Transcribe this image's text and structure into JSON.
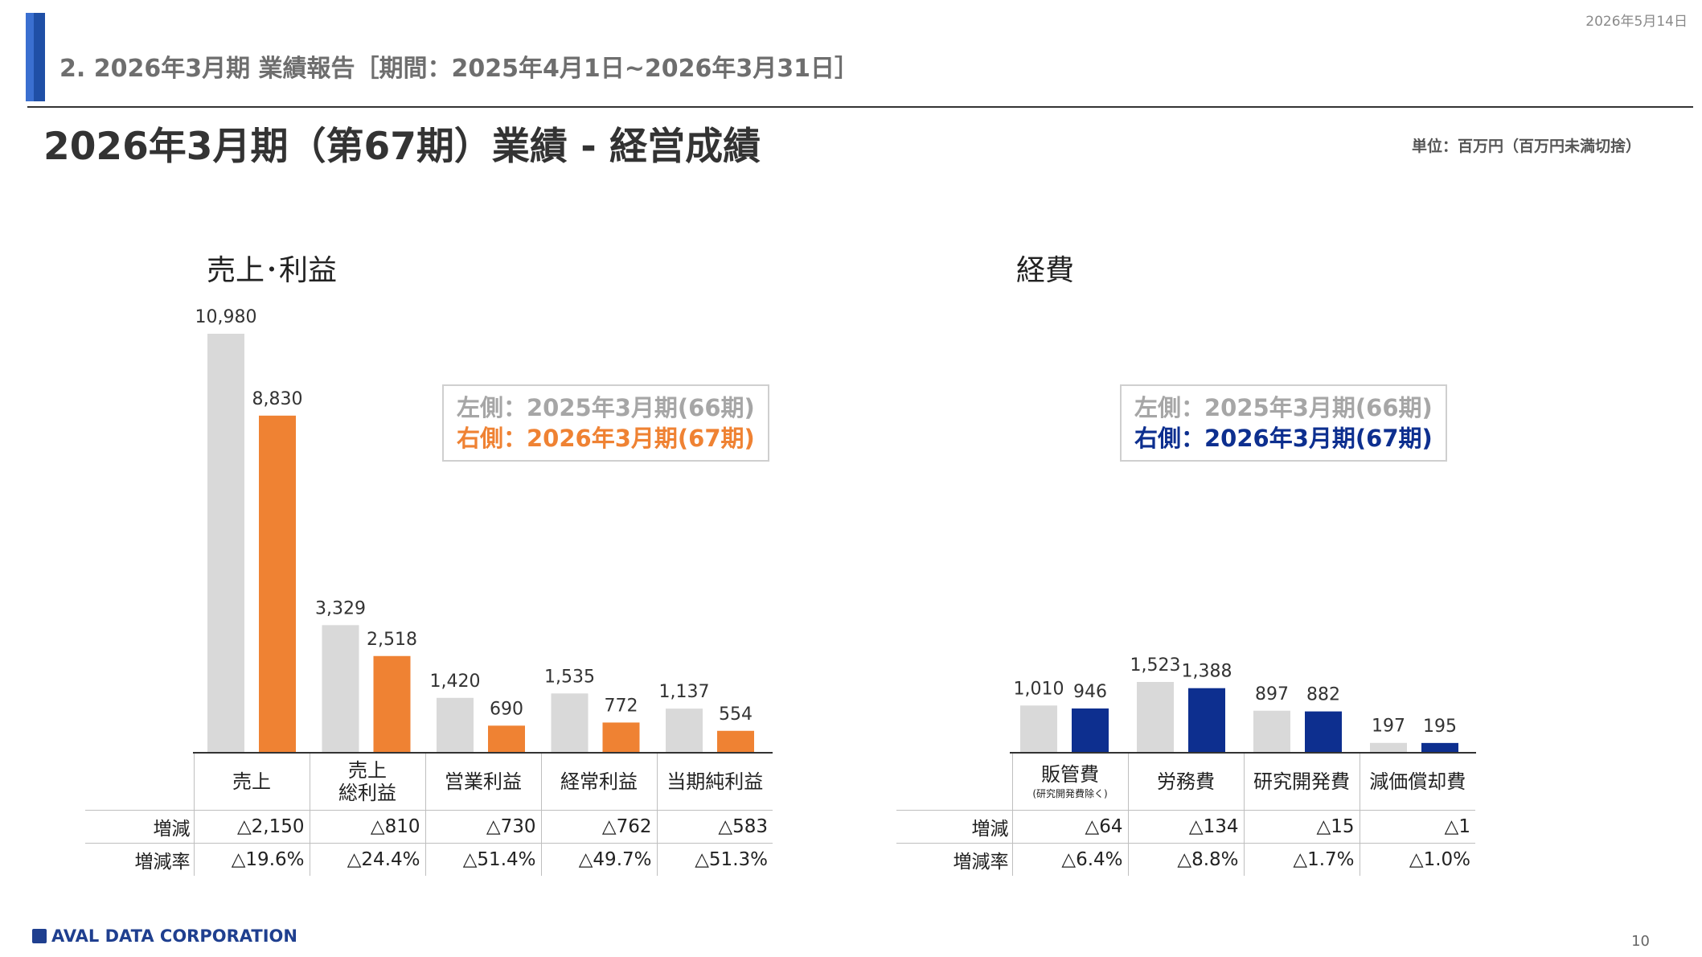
{
  "header": {
    "date": "2026年5月14日",
    "section_title": "2. 2026年3月期 業績報告［期間：2025年4月1日~2026年3月31日］",
    "page_title": "2026年3月期（第67期）業績 - 経営成績",
    "unit_note": "単位：百万円（百万円未満切捨）"
  },
  "sales_panel": {
    "title": "売上･利益",
    "legend_prev": "左側：2025年3月期(66期)",
    "legend_cur": "右側：2026年3月期(67期)",
    "headers": [
      "売上",
      "売上\n総利益",
      "営業利益",
      "経常利益",
      "当期純利益"
    ],
    "row_labels": [
      "増減",
      "増減率"
    ],
    "diff": [
      "△2,150",
      "△810",
      "△730",
      "△762",
      "△583"
    ],
    "rate": [
      "△19.6%",
      "△24.4%",
      "△51.4%",
      "△49.7%",
      "△51.3%"
    ]
  },
  "cost_panel": {
    "title": "経費",
    "legend_prev": "左側：2025年3月期(66期)",
    "legend_cur": "右側：2026年3月期(67期)",
    "headers": [
      "販管費",
      "労務費",
      "研究開発費",
      "減価償却費"
    ],
    "header_note": "(研究開発費除く)",
    "row_labels": [
      "増減",
      "増減率"
    ],
    "diff": [
      "△64",
      "△134",
      "△15",
      "△1"
    ],
    "rate": [
      "△6.4%",
      "△8.8%",
      "△1.7%",
      "△1.0%"
    ]
  },
  "chart_data": [
    {
      "type": "bar",
      "title": "売上･利益",
      "categories": [
        "売上",
        "売上総利益",
        "営業利益",
        "経常利益",
        "当期純利益"
      ],
      "series": [
        {
          "name": "2025年3月期(66期)",
          "values": [
            10980,
            3329,
            1420,
            1535,
            1137
          ],
          "labels": [
            "10,980",
            "3,329",
            "1,420",
            "1,535",
            "1,137"
          ],
          "color": "#d9d9d9"
        },
        {
          "name": "2026年3月期(67期)",
          "values": [
            8830,
            2518,
            690,
            772,
            554
          ],
          "labels": [
            "8,830",
            "2,518",
            "690",
            "772",
            "554"
          ],
          "color": "#ef8233"
        }
      ],
      "ylim": [
        0,
        10980
      ]
    },
    {
      "type": "bar",
      "title": "経費",
      "categories": [
        "販管費",
        "労務費",
        "研究開発費",
        "減価償却費"
      ],
      "series": [
        {
          "name": "2025年3月期(66期)",
          "values": [
            1010,
            1523,
            897,
            197
          ],
          "labels": [
            "1,010",
            "1,523",
            "897",
            "197"
          ],
          "color": "#d9d9d9"
        },
        {
          "name": "2026年3月期(67期)",
          "values": [
            946,
            1388,
            882,
            195
          ],
          "labels": [
            "946",
            "1,388",
            "882",
            "195"
          ],
          "color": "#0d2f8f"
        }
      ],
      "ylim": [
        0,
        1523
      ]
    }
  ],
  "footer": {
    "company": "AVAL DATA CORPORATION",
    "page_number": "10"
  }
}
